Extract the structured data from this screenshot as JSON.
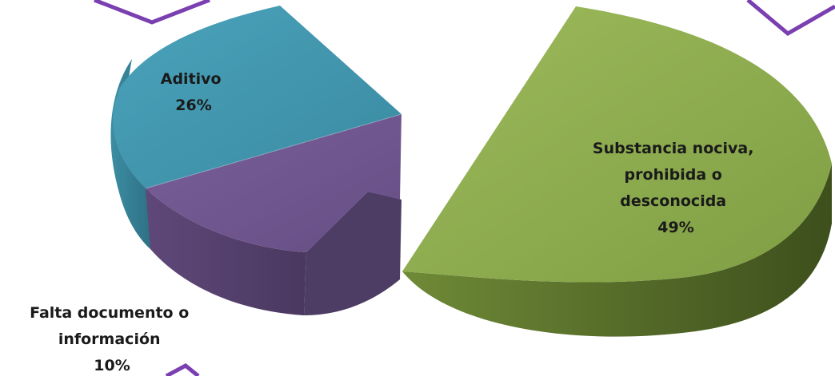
{
  "chart_data": {
    "type": "pie",
    "title": "",
    "slices": [
      {
        "label": "Substancia nociva, prohibida o desconocida",
        "label_lines": [
          "Substancia nociva,",
          "prohibida o",
          "desconocida"
        ],
        "value": 49,
        "pct_text": "49%",
        "color": "#8aa84a",
        "exploded": true
      },
      {
        "label": "Falta documento o información",
        "label_lines": [
          "Falta documento o",
          "información"
        ],
        "value": 10,
        "pct_text": "10%",
        "color": "#6f568c",
        "exploded": false
      },
      {
        "label": "Aditivo",
        "label_lines": [
          "Aditivo"
        ],
        "value": 26,
        "pct_text": "26%",
        "color": "#4196ad",
        "exploded": false
      }
    ],
    "partial_slice_note": "",
    "style": "3d-pie",
    "legend": "none",
    "accent_color": "#7a3fb0"
  }
}
